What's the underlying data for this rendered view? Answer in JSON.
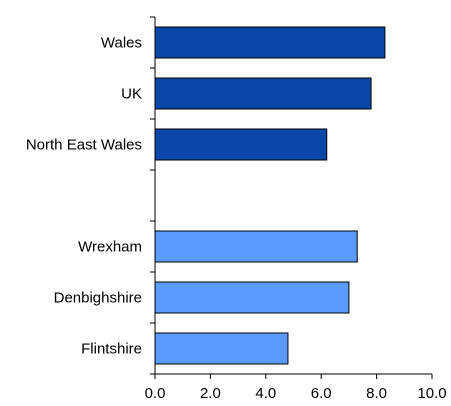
{
  "chart_data": {
    "type": "bar",
    "orientation": "horizontal",
    "title": "",
    "xlabel": "",
    "ylabel": "",
    "xlim": [
      0,
      10
    ],
    "grid": false,
    "legend": "none",
    "x_ticks": [
      "0.0",
      "2.0",
      "4.0",
      "6.0",
      "8.0",
      "10.0"
    ],
    "categories": [
      "Wales",
      "UK",
      "North East Wales",
      "",
      "Wrexham",
      "Denbighshire",
      "Flintshire"
    ],
    "values": [
      8.3,
      7.8,
      6.2,
      null,
      7.3,
      7.0,
      4.8
    ],
    "bar_colors": [
      "#0a47a8",
      "#0a47a8",
      "#0a47a8",
      null,
      "#5b9bff",
      "#5b9bff",
      "#5b9bff"
    ],
    "bar_outline": "#000000"
  }
}
